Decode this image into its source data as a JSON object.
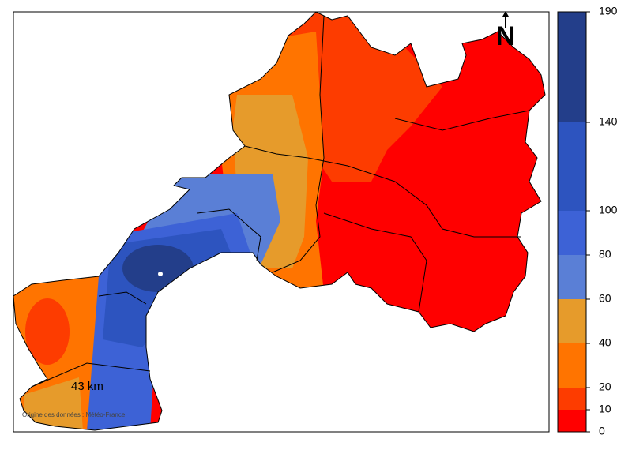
{
  "map": {
    "scale_label": "43 km",
    "north_label": "N",
    "source": "Origine des données : Météo-France"
  },
  "legend": {
    "lim": [
      0,
      190
    ],
    "ticks": [
      0,
      10,
      20,
      40,
      60,
      80,
      100,
      140,
      190
    ],
    "colors": [
      "#ff0000",
      "#fd3c00",
      "#ff7400",
      "#e69b2b",
      "#5a7fd6",
      "#3d62d6",
      "#2d54bf",
      "#233e8a"
    ]
  }
}
